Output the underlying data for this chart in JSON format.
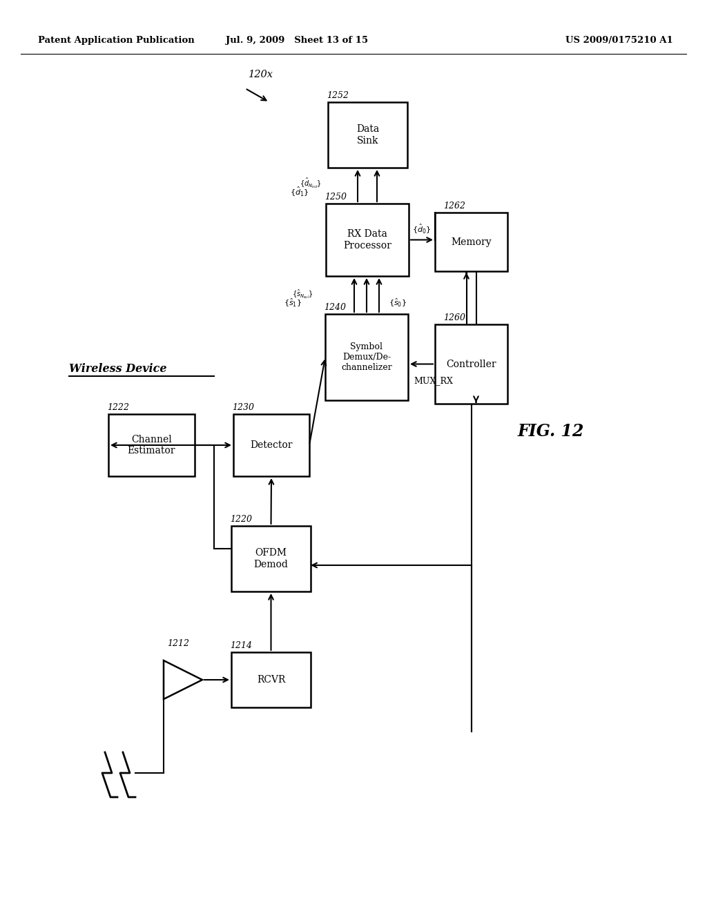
{
  "bg_color": "#ffffff",
  "header_left": "Patent Application Publication",
  "header_mid": "Jul. 9, 2009   Sheet 13 of 15",
  "header_right": "US 2009/0175210 A1",
  "fig_label": "FIG. 12",
  "wireless_label": "Wireless Device",
  "system_label": "120x"
}
